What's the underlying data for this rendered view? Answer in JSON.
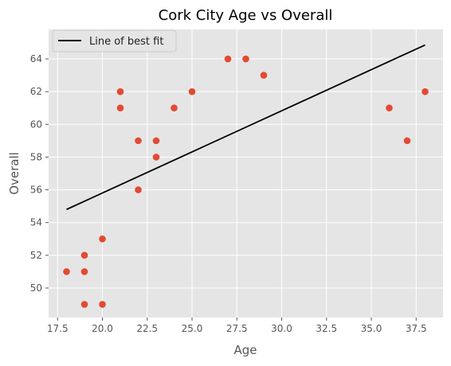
{
  "chart_data": {
    "type": "scatter",
    "title": "Cork City Age vs Overall",
    "xlabel": "Age",
    "ylabel": "Overall",
    "xlim": [
      17.0,
      39.0
    ],
    "ylim": [
      48.2,
      65.8
    ],
    "x_ticks": [
      "17.5",
      "20.0",
      "22.5",
      "25.0",
      "27.5",
      "30.0",
      "32.5",
      "35.0",
      "37.5"
    ],
    "y_ticks": [
      "50",
      "52",
      "54",
      "56",
      "58",
      "60",
      "62",
      "64"
    ],
    "x_tick_values": [
      17.5,
      20.0,
      22.5,
      25.0,
      27.5,
      30.0,
      32.5,
      35.0,
      37.5
    ],
    "y_tick_values": [
      50,
      52,
      54,
      56,
      58,
      60,
      62,
      64
    ],
    "grid": true,
    "legend": {
      "placement": "top-left",
      "entries": [
        "Line of best fit"
      ]
    },
    "points": [
      {
        "x": 18,
        "y": 51
      },
      {
        "x": 19,
        "y": 52
      },
      {
        "x": 19,
        "y": 51
      },
      {
        "x": 19,
        "y": 49
      },
      {
        "x": 20,
        "y": 53
      },
      {
        "x": 20,
        "y": 49
      },
      {
        "x": 21,
        "y": 62
      },
      {
        "x": 21,
        "y": 61
      },
      {
        "x": 22,
        "y": 59
      },
      {
        "x": 22,
        "y": 56
      },
      {
        "x": 23,
        "y": 59
      },
      {
        "x": 23,
        "y": 58
      },
      {
        "x": 24,
        "y": 61
      },
      {
        "x": 25,
        "y": 62
      },
      {
        "x": 27,
        "y": 64
      },
      {
        "x": 28,
        "y": 64
      },
      {
        "x": 29,
        "y": 63
      },
      {
        "x": 36,
        "y": 61
      },
      {
        "x": 37,
        "y": 59
      },
      {
        "x": 38,
        "y": 62
      }
    ],
    "fit_line": {
      "name": "Line of best fit",
      "x": [
        18,
        38
      ],
      "y": [
        54.8,
        64.85
      ]
    },
    "colors": {
      "points": "#E24A33",
      "line": "#000000",
      "background": "#E5E5E5",
      "grid": "#FFFFFF"
    }
  }
}
